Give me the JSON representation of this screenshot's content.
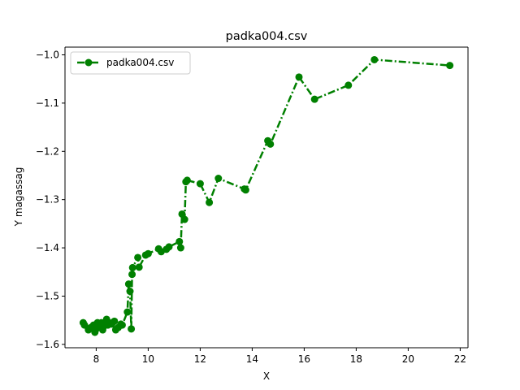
{
  "chart_data": {
    "type": "line",
    "title": "padka004.csv",
    "xlabel": "X",
    "ylabel": "Y magassag",
    "xlim": [
      6.8,
      22.3
    ],
    "ylim": [
      -1.607,
      -0.984
    ],
    "xticks": [
      8,
      10,
      12,
      14,
      16,
      18,
      20,
      22
    ],
    "yticks": [
      -1.6,
      -1.5,
      -1.4,
      -1.3,
      -1.2,
      -1.1,
      -1.0
    ],
    "xtick_labels": [
      "8",
      "10",
      "12",
      "14",
      "16",
      "18",
      "20",
      "22"
    ],
    "ytick_labels": [
      "−1.6",
      "−1.5",
      "−1.4",
      "−1.3",
      "−1.2",
      "−1.1",
      "−1.0"
    ],
    "grid": false,
    "legend_position": "top-left",
    "series": [
      {
        "name": "padka004.csv",
        "color": "#008000",
        "linestyle": "dash-dot",
        "marker": "circle",
        "points": [
          [
            7.5,
            -1.555
          ],
          [
            7.55,
            -1.56
          ],
          [
            7.7,
            -1.57
          ],
          [
            7.8,
            -1.565
          ],
          [
            7.9,
            -1.56
          ],
          [
            7.95,
            -1.575
          ],
          [
            8.0,
            -1.568
          ],
          [
            8.05,
            -1.555
          ],
          [
            8.1,
            -1.56
          ],
          [
            8.2,
            -1.555
          ],
          [
            8.25,
            -1.57
          ],
          [
            8.3,
            -1.562
          ],
          [
            8.35,
            -1.556
          ],
          [
            8.4,
            -1.548
          ],
          [
            8.45,
            -1.56
          ],
          [
            8.5,
            -1.555
          ],
          [
            8.6,
            -1.558
          ],
          [
            8.7,
            -1.552
          ],
          [
            8.75,
            -1.57
          ],
          [
            8.85,
            -1.565
          ],
          [
            8.95,
            -1.558
          ],
          [
            9.0,
            -1.56
          ],
          [
            9.2,
            -1.533
          ],
          [
            9.25,
            -1.475
          ],
          [
            9.3,
            -1.49
          ],
          [
            9.35,
            -1.568
          ],
          [
            9.38,
            -1.455
          ],
          [
            9.4,
            -1.441
          ],
          [
            9.6,
            -1.42
          ],
          [
            9.65,
            -1.44
          ],
          [
            9.9,
            -1.415
          ],
          [
            10.0,
            -1.412
          ],
          [
            10.4,
            -1.402
          ],
          [
            10.5,
            -1.408
          ],
          [
            10.7,
            -1.403
          ],
          [
            10.8,
            -1.398
          ],
          [
            11.2,
            -1.387
          ],
          [
            11.25,
            -1.4
          ],
          [
            11.3,
            -1.33
          ],
          [
            11.4,
            -1.341
          ],
          [
            11.45,
            -1.263
          ],
          [
            11.5,
            -1.26
          ],
          [
            12.0,
            -1.267
          ],
          [
            12.35,
            -1.306
          ],
          [
            12.7,
            -1.256
          ],
          [
            13.7,
            -1.278
          ],
          [
            13.75,
            -1.28
          ],
          [
            14.6,
            -1.178
          ],
          [
            14.7,
            -1.185
          ],
          [
            15.8,
            -1.046
          ],
          [
            16.4,
            -1.092
          ],
          [
            17.7,
            -1.063
          ],
          [
            18.7,
            -1.01
          ],
          [
            21.6,
            -1.022
          ]
        ]
      }
    ]
  }
}
